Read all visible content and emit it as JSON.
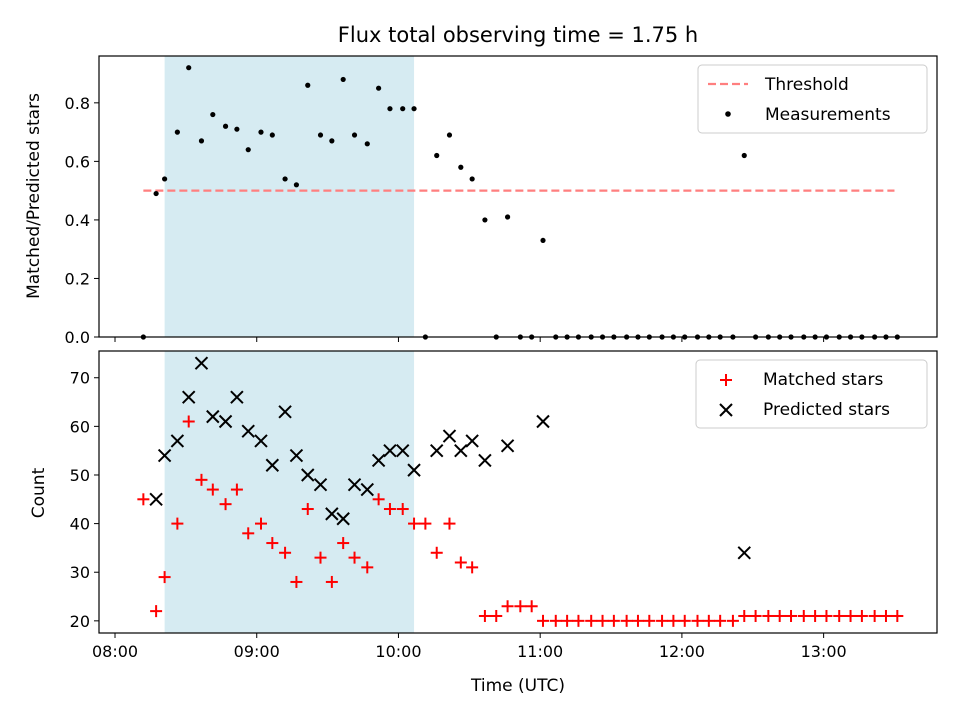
{
  "chart_data": [
    {
      "type": "scatter",
      "title": "Flux total observing time = 1.75 h",
      "xlabel": "",
      "ylabel": "Matched/Predicted stars",
      "xlim": [
        7.887,
        13.8
      ],
      "ylim": [
        0.0,
        0.96
      ],
      "yticks": [
        0.0,
        0.2,
        0.4,
        0.6,
        0.8
      ],
      "ytick_labels": [
        "0.0",
        "0.2",
        "0.4",
        "0.6",
        "0.8"
      ],
      "xticks": [
        8,
        9,
        10,
        11,
        12,
        13
      ],
      "shaded_region": [
        8.35,
        10.11
      ],
      "threshold": {
        "y": 0.5,
        "x_range": [
          8.2,
          13.5
        ],
        "color": "#ff7f7f"
      },
      "series": [
        {
          "name": "Measurements",
          "marker": "dot",
          "color": "#000000",
          "x": [
            8.2,
            8.29,
            8.35,
            8.44,
            8.52,
            8.61,
            8.69,
            8.78,
            8.86,
            8.94,
            9.03,
            9.11,
            9.2,
            9.28,
            9.36,
            9.45,
            9.53,
            9.61,
            9.69,
            9.78,
            9.86,
            9.94,
            10.03,
            10.11,
            10.19,
            10.27,
            10.36,
            10.44,
            10.52,
            10.61,
            10.69,
            10.77,
            10.86,
            10.94,
            11.02,
            11.11,
            11.19,
            11.27,
            11.36,
            11.44,
            11.52,
            11.61,
            11.69,
            11.77,
            11.86,
            11.94,
            12.02,
            12.11,
            12.19,
            12.27,
            12.36,
            12.44,
            12.52,
            12.61,
            12.69,
            12.77,
            12.86,
            12.94,
            13.02,
            13.11,
            13.19,
            13.27,
            13.36,
            13.44,
            13.52
          ],
          "y": [
            0.0,
            0.49,
            0.54,
            0.7,
            0.92,
            0.67,
            0.76,
            0.72,
            0.71,
            0.64,
            0.7,
            0.69,
            0.54,
            0.52,
            0.86,
            0.69,
            0.67,
            0.88,
            0.69,
            0.66,
            0.85,
            0.78,
            0.78,
            0.78,
            0.0,
            0.62,
            0.69,
            0.58,
            0.54,
            0.4,
            0.0,
            0.41,
            0.0,
            0.0,
            0.33,
            0.0,
            0.0,
            0.0,
            0.0,
            0.0,
            0.0,
            0.0,
            0.0,
            0.0,
            0.0,
            0.0,
            0.0,
            0.0,
            0.0,
            0.0,
            0.0,
            0.62,
            0.0,
            0.0,
            0.0,
            0.0,
            0.0,
            0.0,
            0.0,
            0.0,
            0.0,
            0.0,
            0.0,
            0.0,
            0.0
          ]
        }
      ],
      "legend": {
        "position": "top-right",
        "entries": [
          "Threshold",
          "Measurements"
        ]
      }
    },
    {
      "type": "scatter",
      "title": "",
      "xlabel": "Time (UTC)",
      "ylabel": "Count",
      "xlim": [
        7.887,
        13.8
      ],
      "ylim": [
        17.5,
        75.5
      ],
      "yticks": [
        20,
        30,
        40,
        50,
        60,
        70
      ],
      "ytick_labels": [
        "20",
        "30",
        "40",
        "50",
        "60",
        "70"
      ],
      "xticks": [
        8,
        9,
        10,
        11,
        12,
        13
      ],
      "xtick_labels": [
        "08:00",
        "09:00",
        "10:00",
        "11:00",
        "12:00",
        "13:00"
      ],
      "shaded_region": [
        8.35,
        10.11
      ],
      "series": [
        {
          "name": "Matched stars",
          "marker": "plus",
          "color": "#ff0000",
          "x": [
            8.2,
            8.29,
            8.35,
            8.44,
            8.52,
            8.61,
            8.69,
            8.78,
            8.86,
            8.94,
            9.03,
            9.11,
            9.2,
            9.28,
            9.36,
            9.45,
            9.53,
            9.61,
            9.69,
            9.78,
            9.86,
            9.94,
            10.03,
            10.11,
            10.19,
            10.27,
            10.36,
            10.44,
            10.52,
            10.61,
            10.69,
            10.77,
            10.86,
            10.94,
            11.02,
            11.11,
            11.19,
            11.27,
            11.36,
            11.44,
            11.52,
            11.61,
            11.69,
            11.77,
            11.86,
            11.94,
            12.02,
            12.11,
            12.19,
            12.27,
            12.36,
            12.44,
            12.52,
            12.61,
            12.69,
            12.77,
            12.86,
            12.94,
            13.02,
            13.11,
            13.19,
            13.27,
            13.36,
            13.44,
            13.52
          ],
          "y": [
            45,
            22,
            29,
            40,
            61,
            49,
            47,
            44,
            47,
            38,
            40,
            36,
            34,
            28,
            43,
            33,
            28,
            36,
            33,
            31,
            45,
            43,
            43,
            40,
            40,
            34,
            40,
            32,
            31,
            21,
            21,
            23,
            23,
            23,
            20,
            20,
            20,
            20,
            20,
            20,
            20,
            20,
            20,
            20,
            20,
            20,
            20,
            20,
            20,
            20,
            20,
            21,
            21,
            21,
            21,
            21,
            21,
            21,
            21,
            21,
            21,
            21,
            21,
            21,
            21
          ]
        },
        {
          "name": "Predicted stars",
          "marker": "x",
          "color": "#000000",
          "x": [
            8.29,
            8.35,
            8.44,
            8.52,
            8.61,
            8.69,
            8.78,
            8.86,
            8.94,
            9.03,
            9.11,
            9.2,
            9.28,
            9.36,
            9.45,
            9.53,
            9.61,
            9.69,
            9.78,
            9.86,
            9.94,
            10.03,
            10.11,
            10.27,
            10.36,
            10.44,
            10.52,
            10.61,
            10.77,
            11.02,
            12.44
          ],
          "y": [
            45,
            54,
            57,
            66,
            73,
            62,
            61,
            66,
            59,
            57,
            52,
            63,
            54,
            50,
            48,
            42,
            41,
            48,
            47,
            53,
            55,
            55,
            51,
            55,
            58,
            55,
            57,
            53,
            56,
            61,
            34
          ]
        }
      ],
      "legend": {
        "position": "top-right",
        "entries": [
          "Matched stars",
          "Predicted stars"
        ]
      }
    }
  ]
}
